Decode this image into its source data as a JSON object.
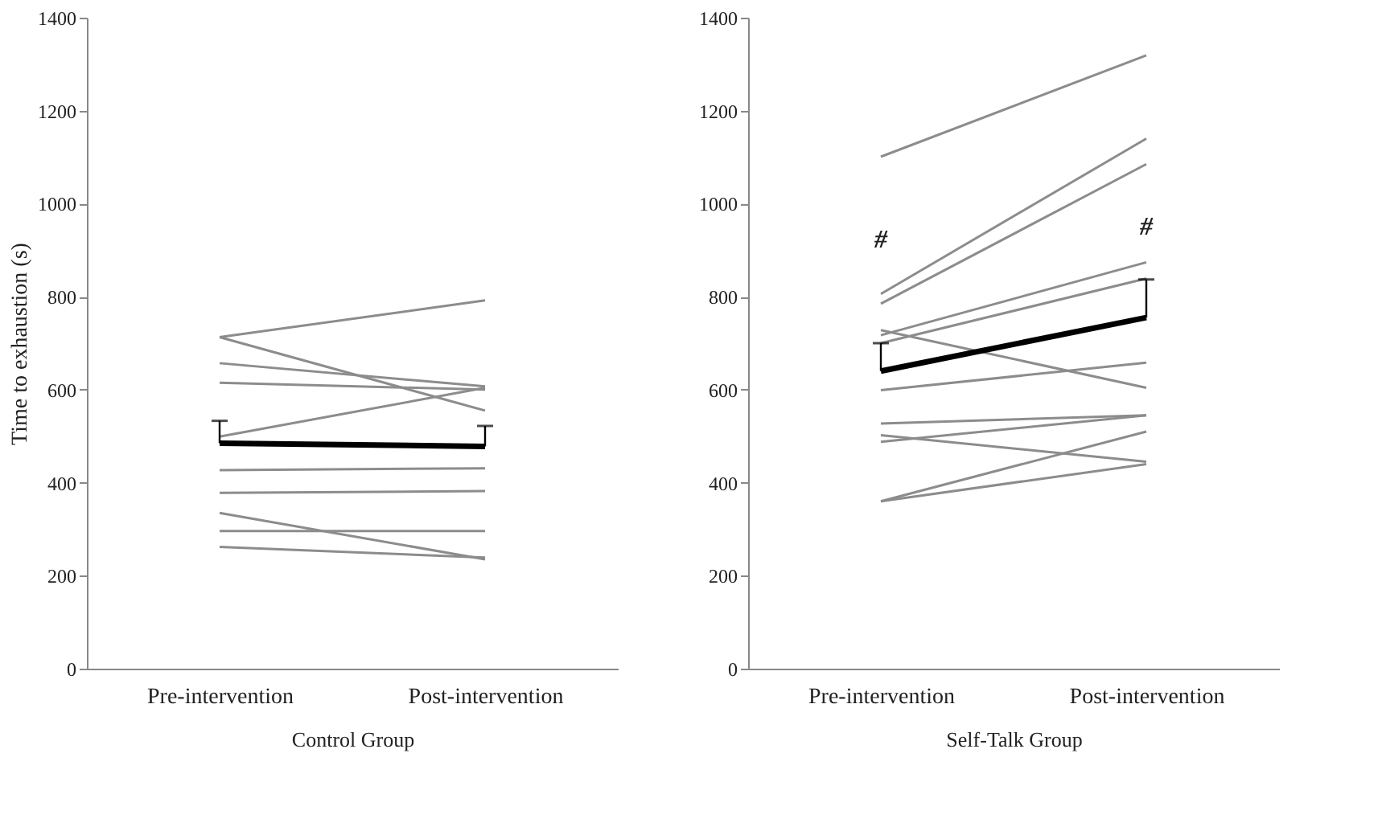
{
  "chart_data": [
    {
      "type": "line",
      "xlabel": "Control Group",
      "ylabel": "Time to exhaustion (s)",
      "categories": [
        "Pre-intervention",
        "Post-intervention"
      ],
      "ylim": [
        0,
        1400
      ],
      "yticks": [
        0,
        200,
        400,
        600,
        800,
        1000,
        1200,
        1400
      ],
      "grid": false,
      "legend": false,
      "marker": "none",
      "line_style": "solid",
      "series": [
        {
          "color": "#8c8c8c",
          "values": [
            713,
            792
          ]
        },
        {
          "color": "#8c8c8c",
          "values": [
            713,
            555
          ]
        },
        {
          "color": "#8c8c8c",
          "values": [
            657,
            607
          ]
        },
        {
          "color": "#8c8c8c",
          "values": [
            615,
            600
          ]
        },
        {
          "color": "#8c8c8c",
          "values": [
            499,
            604
          ]
        },
        {
          "color": "#8c8c8c",
          "values": [
            427,
            431
          ]
        },
        {
          "color": "#8c8c8c",
          "values": [
            378,
            382
          ]
        },
        {
          "color": "#8c8c8c",
          "values": [
            335,
            235
          ]
        },
        {
          "color": "#8c8c8c",
          "values": [
            296,
            296
          ]
        },
        {
          "color": "#8c8c8c",
          "values": [
            262,
            239
          ]
        },
        {
          "color": "#000000",
          "values": [
            485,
            478
          ],
          "errors": [
            [
              485,
              533
            ],
            [
              478,
              522
            ]
          ]
        }
      ]
    },
    {
      "type": "line",
      "xlabel": "Self-Talk Group",
      "categories": [
        "Pre-intervention",
        "Post-intervention"
      ],
      "ylim": [
        0,
        1400
      ],
      "yticks": [
        0,
        200,
        400,
        600,
        800,
        1000,
        1200,
        1400
      ],
      "grid": false,
      "legend": false,
      "marker": "none",
      "line_style": "solid",
      "annotations": [
        "#",
        "#"
      ],
      "series": [
        {
          "color": "#8c8c8c",
          "values": [
            1101,
            1319
          ]
        },
        {
          "color": "#8c8c8c",
          "values": [
            806,
            1140
          ]
        },
        {
          "color": "#8c8c8c",
          "values": [
            785,
            1085
          ]
        },
        {
          "color": "#8c8c8c",
          "values": [
            717,
            874
          ]
        },
        {
          "color": "#8c8c8c",
          "values": [
            700,
            839
          ]
        },
        {
          "color": "#8c8c8c",
          "values": [
            728,
            604
          ]
        },
        {
          "color": "#8c8c8c",
          "values": [
            599,
            658
          ]
        },
        {
          "color": "#8c8c8c",
          "values": [
            527,
            545
          ]
        },
        {
          "color": "#8c8c8c",
          "values": [
            502,
            445
          ]
        },
        {
          "color": "#8c8c8c",
          "values": [
            488,
            545
          ]
        },
        {
          "color": "#8c8c8c",
          "values": [
            360,
            510
          ]
        },
        {
          "color": "#8c8c8c",
          "values": [
            360,
            440
          ]
        },
        {
          "color": "#000000",
          "values": [
            640,
            755
          ],
          "errors": [
            [
              640,
              700
            ],
            [
              755,
              837
            ]
          ]
        }
      ]
    }
  ]
}
